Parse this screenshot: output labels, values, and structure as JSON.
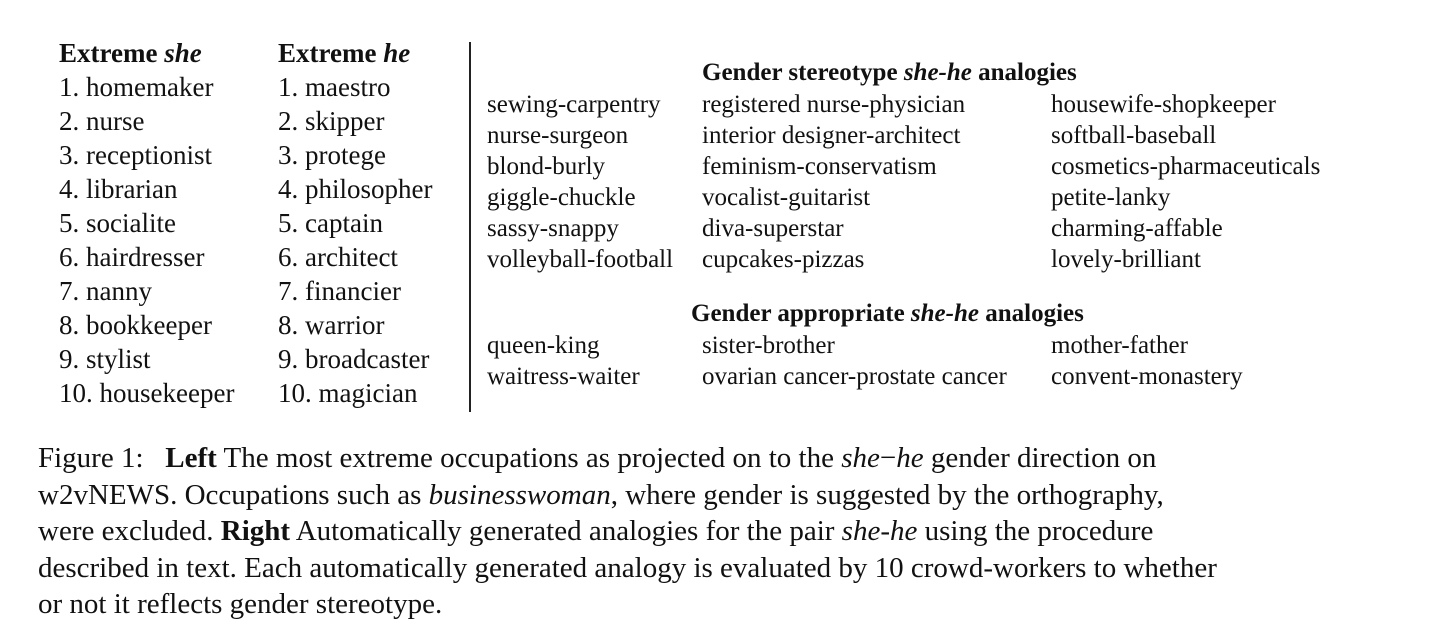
{
  "left": {
    "she": {
      "label_prefix": "Extreme",
      "label_word": "she",
      "items": [
        "1. homemaker",
        "2. nurse",
        "3. receptionist",
        "4. librarian",
        "5. socialite",
        "6. hairdresser",
        "7. nanny",
        "8. bookkeeper",
        "9. stylist",
        "10. housekeeper"
      ]
    },
    "he": {
      "label_prefix": "Extreme",
      "label_word": "he",
      "items": [
        "1. maestro",
        "2. skipper",
        "3. protege",
        "4. philosopher",
        "5. captain",
        "6. architect",
        "7. financier",
        "8. warrior",
        "9. broadcaster",
        "10. magician"
      ]
    }
  },
  "right": {
    "stereotype": {
      "title_prefix": "Gender stereotype",
      "title_pair": "she-he",
      "title_suffix": "analogies",
      "rows": [
        [
          "sewing-carpentry",
          "registered nurse-physician",
          "housewife-shopkeeper"
        ],
        [
          "nurse-surgeon",
          "interior designer-architect",
          "softball-baseball"
        ],
        [
          "blond-burly",
          "feminism-conservatism",
          "cosmetics-pharmaceuticals"
        ],
        [
          "giggle-chuckle",
          "vocalist-guitarist",
          "petite-lanky"
        ],
        [
          "sassy-snappy",
          "diva-superstar",
          "charming-affable"
        ],
        [
          "volleyball-football",
          "cupcakes-pizzas",
          "lovely-brilliant"
        ]
      ]
    },
    "appropriate": {
      "title_prefix": "Gender appropriate",
      "title_pair": "she-he",
      "title_suffix": "analogies",
      "rows": [
        [
          "queen-king",
          "sister-brother",
          "mother-father"
        ],
        [
          "waitress-waiter",
          "ovarian cancer-prostate cancer",
          "convent-monastery"
        ]
      ]
    }
  },
  "caption": {
    "figure_label": "Figure 1:",
    "left_label": "Left",
    "part1": "The most extreme occupations as projected on to the",
    "she": "she",
    "minus": "−",
    "he": "he",
    "part2": "gender direction on",
    "part3": "w2vNEWS. Occupations such as",
    "businesswoman": "businesswoman",
    "part4": ", where gender is suggested by the orthography,",
    "part5": "were excluded.",
    "right_label": "Right",
    "part6": "Automatically generated analogies for the pair",
    "pair": "she-he",
    "part7": "using the procedure",
    "part8": "described in text.  Each automatically generated analogy is evaluated by 10 crowd-workers to whether",
    "part9": "or not it reflects gender stereotype."
  }
}
